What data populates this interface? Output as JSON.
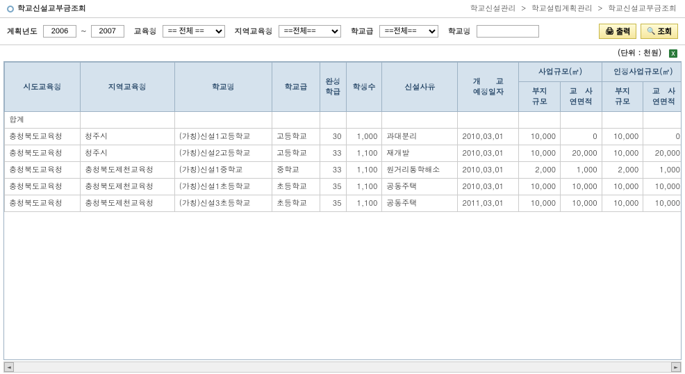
{
  "header": {
    "title": "학교신설교부금조회",
    "breadcrumb": [
      "학교신설관리",
      "학교설립계획관리",
      "학교신설교부금조회"
    ]
  },
  "filter": {
    "yearLabel": "계획년도",
    "yearFrom": "2006",
    "yearTo": "2007",
    "eduOfficeLabel": "교육청",
    "eduOfficeValue": "== 전체 ==",
    "regionLabel": "지역교육청",
    "regionValue": "==전체==",
    "gradeLabel": "학교급",
    "gradeValue": "==전체==",
    "schoolNameLabel": "학교명",
    "schoolNameValue": "",
    "printLabel": "출력",
    "searchLabel": "조회"
  },
  "unitLabel": "(단위 : 천원)",
  "table": {
    "headers": {
      "sido": "시도교육청",
      "region": "지역교육청",
      "school": "학교명",
      "grade": "학교급",
      "classes": "완성\n학급",
      "students": "학생수",
      "reason": "신설사유",
      "openDate": "개　　교\n예정일자",
      "bizScaleGroup": "사업규모(㎡)",
      "approvedScaleGroup": "인정사업규모(㎡)",
      "landScale": "부지\n규모",
      "floorArea": "교　사\n연면적"
    },
    "totalLabel": "합계",
    "rows": [
      {
        "sido": "충청북도교육청",
        "region": "청주시",
        "school": "(가칭)신설1고등학교",
        "grade": "고등학교",
        "classes": "30",
        "students": "1,000",
        "reason": "과대분리",
        "openDate": "2010,03,01",
        "landScale1": "10,000",
        "floorArea1": "0",
        "landScale2": "10,000",
        "floorArea2": "0"
      },
      {
        "sido": "충청북도교육청",
        "region": "청주시",
        "school": "(가칭)신설2고등학교",
        "grade": "고등학교",
        "classes": "33",
        "students": "1,100",
        "reason": "재개발",
        "openDate": "2010,03,01",
        "landScale1": "10,000",
        "floorArea1": "20,000",
        "landScale2": "10,000",
        "floorArea2": "20,000"
      },
      {
        "sido": "충청북도교육청",
        "region": "충청북도제천교육청",
        "school": "(가칭)신설1중학교",
        "grade": "중학교",
        "classes": "33",
        "students": "1,100",
        "reason": "원거리통학해소",
        "openDate": "2010,03,01",
        "landScale1": "2,000",
        "floorArea1": "1,000",
        "landScale2": "2,000",
        "floorArea2": "1,000"
      },
      {
        "sido": "충청북도교육청",
        "region": "충청북도제천교육청",
        "school": "(가칭)신설1초등학교",
        "grade": "초등학교",
        "classes": "35",
        "students": "1,100",
        "reason": "공동주택",
        "openDate": "2010,03,01",
        "landScale1": "10,000",
        "floorArea1": "10,000",
        "landScale2": "10,000",
        "floorArea2": "10,000"
      },
      {
        "sido": "충청북도교육청",
        "region": "충청북도제천교육청",
        "school": "(가칭)신설3초등학교",
        "grade": "초등학교",
        "classes": "35",
        "students": "1,100",
        "reason": "공동주택",
        "openDate": "2011,03,01",
        "landScale1": "10,000",
        "floorArea1": "10,000",
        "landScale2": "10,000",
        "floorArea2": "10,000"
      }
    ]
  },
  "colors": {
    "headerBg": "#d5e2ed",
    "headerBorder": "#9db2c4",
    "headerText": "#2a4a6a",
    "btnYellow1": "#fffbd6",
    "btnYellow2": "#f5e79e"
  }
}
